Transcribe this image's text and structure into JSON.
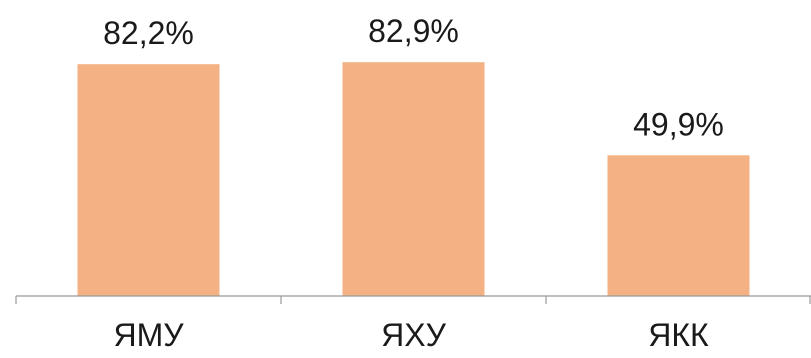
{
  "chart_data": {
    "type": "bar",
    "categories": [
      "ЯМУ",
      "ЯХУ",
      "ЯКК"
    ],
    "values": [
      82.2,
      82.9,
      49.9
    ],
    "data_labels": [
      "82,2%",
      "82,9%",
      "49,9%"
    ],
    "ylim": [
      0,
      100
    ],
    "grid": false,
    "legend": "none",
    "bar_color": "#f4b183"
  }
}
